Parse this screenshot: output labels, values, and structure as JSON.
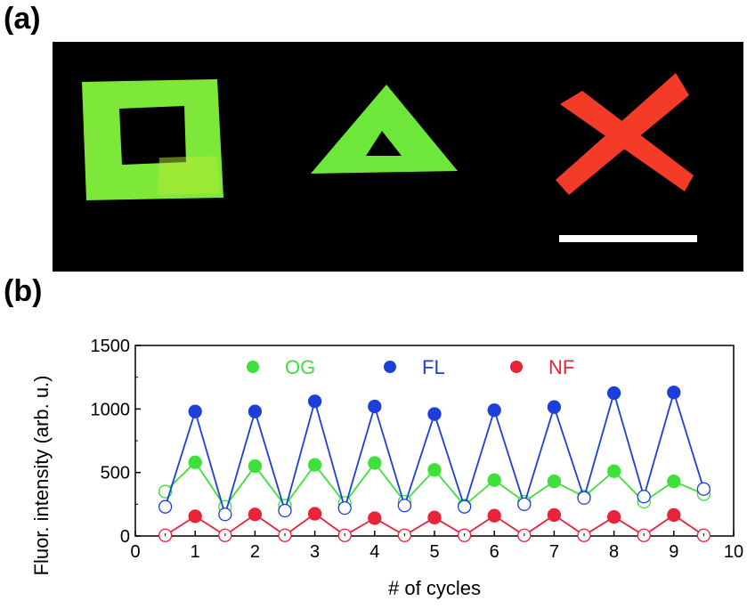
{
  "panels": {
    "a_label": "(a)",
    "b_label": "(b)"
  },
  "image": {
    "background": "#000000",
    "shapes": [
      {
        "name": "square-ring",
        "color": "#7ee83a"
      },
      {
        "name": "triangle-ring",
        "color": "#6de83a"
      },
      {
        "name": "x-mark",
        "color": "#f43b28"
      }
    ],
    "scale_bar_color": "#ffffff"
  },
  "chart_data": {
    "type": "line",
    "xlabel": "# of cycles",
    "ylabel": "Fluor. intensity (arb. u.)",
    "xlim": [
      0,
      10
    ],
    "ylim": [
      0,
      1500
    ],
    "xticks": [
      "0",
      "1",
      "2",
      "3",
      "4",
      "5",
      "6",
      "7",
      "8",
      "9",
      "10"
    ],
    "yticks": [
      "0",
      "500",
      "1000",
      "1500"
    ],
    "legend_position": "top",
    "series": [
      {
        "name": "OG",
        "color": "#3ee03a",
        "x": [
          0.5,
          1,
          1.5,
          2,
          2.5,
          3,
          3.5,
          4,
          4.5,
          5,
          5.5,
          6,
          6.5,
          7,
          7.5,
          8,
          8.5,
          9,
          9.5
        ],
        "y": [
          350,
          580,
          230,
          550,
          240,
          560,
          260,
          575,
          270,
          520,
          240,
          440,
          270,
          430,
          310,
          510,
          270,
          430,
          330
        ],
        "filled": [
          false,
          true,
          false,
          true,
          false,
          true,
          false,
          true,
          false,
          true,
          false,
          true,
          false,
          true,
          false,
          true,
          false,
          true,
          false
        ]
      },
      {
        "name": "FL",
        "color": "#1c3fd9",
        "x": [
          0.5,
          1,
          1.5,
          2,
          2.5,
          3,
          3.5,
          4,
          4.5,
          5,
          5.5,
          6,
          6.5,
          7,
          7.5,
          8,
          8.5,
          9,
          9.5
        ],
        "y": [
          230,
          980,
          170,
          980,
          200,
          1060,
          220,
          1020,
          240,
          960,
          230,
          990,
          250,
          1015,
          300,
          1125,
          310,
          1130,
          370
        ],
        "filled": [
          false,
          true,
          false,
          true,
          false,
          true,
          false,
          true,
          false,
          true,
          false,
          true,
          false,
          true,
          false,
          true,
          false,
          true,
          false
        ]
      },
      {
        "name": "NF",
        "color": "#e8233a",
        "x": [
          0.5,
          1,
          1.5,
          2,
          2.5,
          3,
          3.5,
          4,
          4.5,
          5,
          5.5,
          6,
          6.5,
          7,
          7.5,
          8,
          8.5,
          9,
          9.5
        ],
        "y": [
          5,
          155,
          5,
          170,
          5,
          175,
          5,
          140,
          5,
          145,
          5,
          160,
          5,
          165,
          5,
          150,
          5,
          165,
          5
        ],
        "filled": [
          false,
          true,
          false,
          true,
          false,
          true,
          false,
          true,
          false,
          true,
          false,
          true,
          false,
          true,
          false,
          true,
          false,
          true,
          false
        ]
      }
    ]
  }
}
